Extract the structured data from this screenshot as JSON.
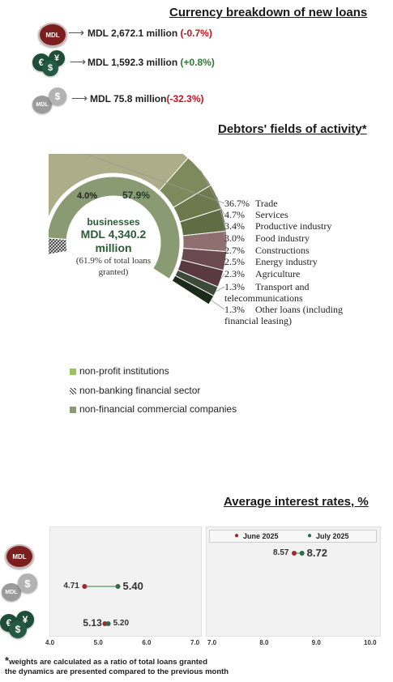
{
  "currency": {
    "title": "Currency breakdown of new loans",
    "rows": [
      {
        "icon": "mdl-coin-icon",
        "coin_text": "MDL",
        "text": "MDL 2,672.1 million ",
        "change": "(-0.7%)",
        "change_color": "#c0151d"
      },
      {
        "icon": "euro-dollar-yen-coins-icon",
        "coin_text": "",
        "text": "MDL 1,592.3 million ",
        "change": "(+0.8%)",
        "change_color": "#2e7d32"
      },
      {
        "icon": "grey-mdl-dollar-coins-icon",
        "coin_text": "MDL",
        "text": "MDL 75.8 million",
        "change": "(-32.3%)",
        "change_color": "#c0151d"
      }
    ]
  },
  "debtors": {
    "title": "Debtors' fields of activity*",
    "center_label": "businesses",
    "center_amount": "MDL 4,340.2 million",
    "center_note": "(61.9% of total loans granted)",
    "inner_labels": {
      "left": "4.0%",
      "right": "57.9%"
    },
    "legend": [
      {
        "label": "non-profit institutions",
        "color": "#9ac45c"
      },
      {
        "label": "non-banking financial sector",
        "color": "#555555"
      },
      {
        "label": "non-financial commercial companies",
        "color": "#8a9b74"
      }
    ]
  },
  "chart_data": [
    {
      "type": "pie",
      "title": "Debtors' fields of activity*",
      "categories": [
        "Trade",
        "Services",
        "Productive industry",
        "Food industry",
        "Constructions",
        "Energy industry",
        "Agriculture",
        "Transport and telecommunications",
        "Other loans (including financial leasing)"
      ],
      "values": [
        36.7,
        4.7,
        3.4,
        3.0,
        2.7,
        2.5,
        2.3,
        1.3,
        1.3
      ],
      "labels": [
        "36.7%",
        "4.7%",
        "3.4%",
        "3.0%",
        "2.7%",
        "2.5%",
        "2.3%",
        "1.3%",
        "1.3%"
      ],
      "colors": [
        "#adad8a",
        "#7f8a5c",
        "#6e7a4e",
        "#5f6d45",
        "#8f6f6f",
        "#6b4b4f",
        "#5a3a40",
        "#3d4a3a",
        "#1c2a1c"
      ]
    },
    {
      "type": "pie",
      "categories": [
        "non-profit institutions",
        "non-banking financial sector",
        "non-financial commercial companies"
      ],
      "values": [
        0.0,
        4.0,
        57.9
      ],
      "labels": [
        "",
        "4.0%",
        "57.9%"
      ],
      "colors": [
        "#9ac45c",
        "#555555",
        "#8a9b74"
      ]
    },
    {
      "type": "scatter",
      "title": "Average interest rates, %",
      "legend": [
        "June 2025",
        "July 2025"
      ],
      "series": [
        {
          "name": "June 2025",
          "color": "#9b2b2b",
          "points": [
            {
              "row": "MDL",
              "x": 8.57
            },
            {
              "row": "MDL floating",
              "x": 4.71
            },
            {
              "row": "foreign currency",
              "x": 5.13
            }
          ]
        },
        {
          "name": "July 2025",
          "color": "#2e6b4a",
          "points": [
            {
              "row": "MDL",
              "x": 8.72
            },
            {
              "row": "MDL floating",
              "x": 5.4
            },
            {
              "row": "foreign currency",
              "x": 5.2
            }
          ]
        }
      ],
      "panels": [
        {
          "xlim": [
            4.0,
            7.0
          ],
          "ticks": [
            "4.0",
            "5.0",
            "6.0",
            "7.0"
          ]
        },
        {
          "xlim": [
            7.0,
            10.0
          ],
          "ticks": [
            "7.0",
            "8.0",
            "9.0",
            "10.0"
          ]
        }
      ]
    }
  ],
  "rates": {
    "title": "Average interest rates, %",
    "legend_june": "June 2025",
    "legend_july": "July 2025",
    "icons": [
      {
        "name": "mdl-coin-icon",
        "text": "MDL"
      },
      {
        "name": "grey-mdl-dollar-coins-icon",
        "text": "MDL"
      },
      {
        "name": "euro-dollar-yen-coins-icon",
        "text": ""
      }
    ]
  },
  "footnotes": {
    "line1_star": "*",
    "line1": "weights are calculated as a ratio of total loans granted",
    "line2": "the dynamics are presented compared to the previous month"
  }
}
